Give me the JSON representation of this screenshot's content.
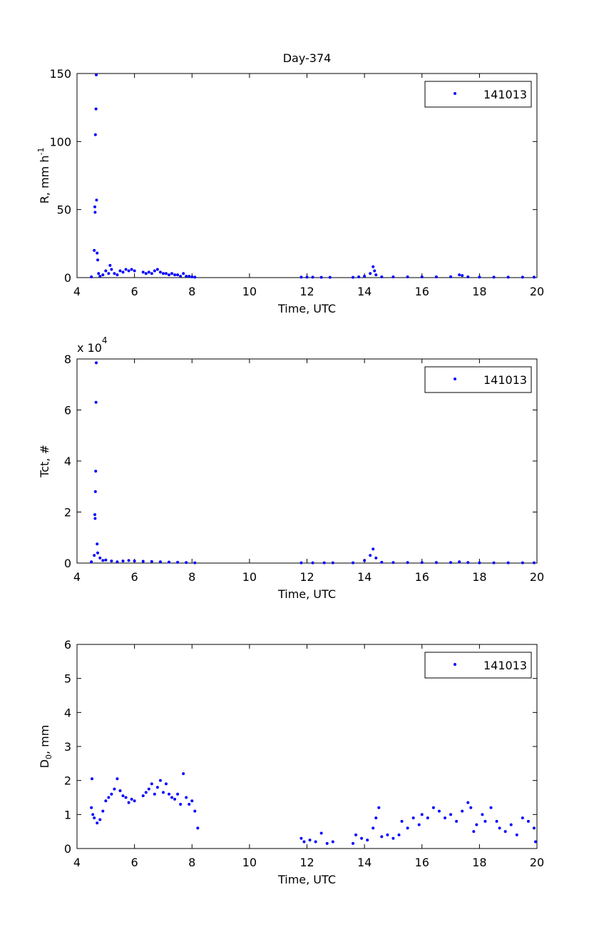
{
  "chart_data": [
    {
      "type": "scatter",
      "title": "Day-374",
      "xlabel": "Time, UTC",
      "ylabel_parts": [
        "R, mm h",
        "-1"
      ],
      "xlim": [
        4,
        20
      ],
      "xticks": [
        4,
        6,
        8,
        10,
        12,
        14,
        16,
        18,
        20
      ],
      "ylim": [
        0,
        150
      ],
      "yticks": [
        0,
        50,
        100,
        150
      ],
      "legend": "upper right",
      "series": [
        {
          "name": "141013",
          "color": "#0000ff",
          "x": [
            4.5,
            4.6,
            4.62,
            4.63,
            4.64,
            4.66,
            4.67,
            4.68,
            4.7,
            4.72,
            4.75,
            4.8,
            4.9,
            5.0,
            5.1,
            5.15,
            5.2,
            5.3,
            5.4,
            5.5,
            5.6,
            5.7,
            5.8,
            5.9,
            6.0,
            6.3,
            6.4,
            6.5,
            6.6,
            6.7,
            6.8,
            6.9,
            7.0,
            7.1,
            7.2,
            7.3,
            7.4,
            7.5,
            7.6,
            7.7,
            7.8,
            7.9,
            8.0,
            8.1,
            11.8,
            12.0,
            12.2,
            12.5,
            12.8,
            13.6,
            13.8,
            14.0,
            14.2,
            14.3,
            14.35,
            14.4,
            14.6,
            15.0,
            15.5,
            16.0,
            16.5,
            17.0,
            17.3,
            17.4,
            17.6,
            18.0,
            18.5,
            19.0,
            19.5,
            19.9
          ],
          "values": [
            0.5,
            20,
            52,
            48,
            105,
            124,
            149,
            57,
            18,
            13,
            3,
            1,
            2,
            5,
            3,
            9,
            6,
            3,
            2,
            5,
            4,
            6,
            5,
            6,
            5,
            4,
            3,
            4,
            3,
            5,
            6,
            4,
            3,
            3,
            2,
            3,
            2,
            2,
            1,
            3,
            1,
            1,
            0.5,
            0.3,
            0.3,
            0.3,
            0.3,
            0.2,
            0.2,
            0.2,
            0.5,
            1,
            3,
            8,
            5,
            2,
            0.5,
            0.5,
            0.5,
            0.5,
            0.5,
            0.6,
            2,
            1.5,
            0.5,
            0.4,
            0.3,
            0.3,
            0.3,
            0.3
          ]
        }
      ]
    },
    {
      "type": "scatter",
      "xlabel": "Time, UTC",
      "ylabel_parts": [
        "Tct, #"
      ],
      "y_multiplier": [
        "x 10",
        "4"
      ],
      "xlim": [
        4,
        20
      ],
      "xticks": [
        4,
        6,
        8,
        10,
        12,
        14,
        16,
        18,
        20
      ],
      "ylim": [
        0,
        8
      ],
      "yticks": [
        0,
        2,
        4,
        6,
        8
      ],
      "legend": "upper right",
      "series": [
        {
          "name": "141013",
          "color": "#0000ff",
          "x": [
            4.5,
            4.6,
            4.62,
            4.63,
            4.64,
            4.65,
            4.66,
            4.67,
            4.7,
            4.72,
            4.8,
            4.9,
            5.0,
            5.2,
            5.4,
            5.6,
            5.8,
            6.0,
            6.3,
            6.6,
            6.9,
            7.2,
            7.5,
            7.8,
            8.1,
            11.8,
            12.2,
            12.6,
            12.9,
            13.6,
            14.0,
            14.2,
            14.3,
            14.4,
            14.6,
            15.0,
            15.5,
            16.0,
            16.5,
            17.0,
            17.3,
            17.6,
            18.0,
            18.5,
            19.0,
            19.5,
            19.9
          ],
          "values": [
            0.05,
            0.3,
            1.9,
            1.75,
            2.8,
            3.6,
            6.3,
            7.85,
            0.75,
            0.4,
            0.2,
            0.1,
            0.12,
            0.08,
            0.05,
            0.08,
            0.1,
            0.08,
            0.07,
            0.06,
            0.05,
            0.04,
            0.03,
            0.02,
            0.01,
            0.01,
            0.01,
            0.01,
            0.01,
            0.01,
            0.1,
            0.3,
            0.55,
            0.2,
            0.03,
            0.02,
            0.02,
            0.02,
            0.02,
            0.02,
            0.05,
            0.02,
            0.01,
            0.01,
            0.01,
            0.01,
            0.01
          ]
        }
      ]
    },
    {
      "type": "scatter",
      "xlabel": "Time, UTC",
      "ylabel_parts": [
        "D",
        "0",
        ", mm"
      ],
      "xlim": [
        4,
        20
      ],
      "xticks": [
        4,
        6,
        8,
        10,
        12,
        14,
        16,
        18,
        20
      ],
      "ylim": [
        0,
        6
      ],
      "yticks": [
        0,
        1,
        2,
        3,
        4,
        5,
        6
      ],
      "legend": "upper right",
      "series": [
        {
          "name": "141013",
          "color": "#0000ff",
          "x": [
            4.5,
            4.52,
            4.55,
            4.6,
            4.7,
            4.8,
            4.9,
            5.0,
            5.1,
            5.2,
            5.3,
            5.4,
            5.5,
            5.6,
            5.7,
            5.8,
            5.9,
            6.0,
            6.3,
            6.4,
            6.5,
            6.6,
            6.7,
            6.8,
            6.9,
            7.0,
            7.1,
            7.2,
            7.3,
            7.4,
            7.5,
            7.6,
            7.7,
            7.8,
            7.9,
            8.0,
            8.1,
            8.2,
            11.8,
            11.9,
            12.1,
            12.3,
            12.5,
            12.7,
            12.9,
            13.6,
            13.7,
            13.9,
            14.1,
            14.3,
            14.4,
            14.5,
            14.6,
            14.8,
            15.0,
            15.2,
            15.3,
            15.5,
            15.7,
            15.9,
            16.0,
            16.2,
            16.4,
            16.6,
            16.8,
            17.0,
            17.2,
            17.4,
            17.6,
            17.7,
            17.8,
            17.9,
            18.1,
            18.2,
            18.4,
            18.6,
            18.7,
            18.9,
            19.1,
            19.3,
            19.5,
            19.7,
            19.9,
            19.95
          ],
          "values": [
            1.2,
            2.05,
            1.0,
            0.9,
            0.75,
            0.85,
            1.1,
            1.4,
            1.5,
            1.6,
            1.75,
            2.05,
            1.7,
            1.55,
            1.5,
            1.35,
            1.45,
            1.4,
            1.55,
            1.65,
            1.75,
            1.9,
            1.6,
            1.8,
            2.0,
            1.65,
            1.9,
            1.6,
            1.5,
            1.45,
            1.6,
            1.3,
            2.2,
            1.5,
            1.3,
            1.4,
            1.1,
            0.6,
            0.3,
            0.2,
            0.25,
            0.2,
            0.45,
            0.15,
            0.2,
            0.15,
            0.4,
            0.3,
            0.25,
            0.6,
            0.9,
            1.2,
            0.35,
            0.4,
            0.3,
            0.4,
            0.8,
            0.6,
            0.9,
            0.7,
            1.0,
            0.9,
            1.2,
            1.1,
            0.9,
            1.0,
            0.8,
            1.1,
            1.35,
            1.2,
            0.5,
            0.7,
            1.0,
            0.8,
            1.2,
            0.8,
            0.6,
            0.5,
            0.7,
            0.4,
            0.9,
            0.8,
            0.6,
            0.2
          ]
        }
      ]
    }
  ]
}
